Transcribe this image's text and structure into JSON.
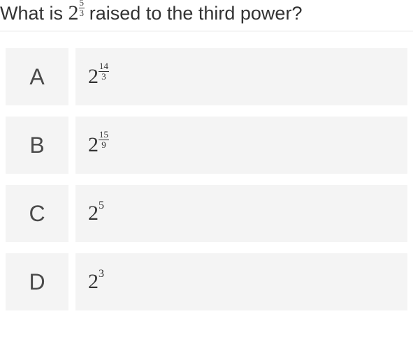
{
  "question": {
    "base": "2",
    "exp_num": "5",
    "exp_den": "3",
    "prefix": "What is ",
    "suffix": " raised to the third power?"
  },
  "options": [
    {
      "letter": "A",
      "base": "2",
      "type": "frac",
      "exp_num": "14",
      "exp_den": "3"
    },
    {
      "letter": "B",
      "base": "2",
      "type": "frac",
      "exp_num": "15",
      "exp_den": "9"
    },
    {
      "letter": "C",
      "base": "2",
      "type": "int",
      "exp": "5"
    },
    {
      "letter": "D",
      "base": "2",
      "type": "int",
      "exp": "3"
    }
  ],
  "colors": {
    "text": "#333333",
    "option_bg": "#f4f4f4",
    "divider": "#e2e2e2"
  }
}
